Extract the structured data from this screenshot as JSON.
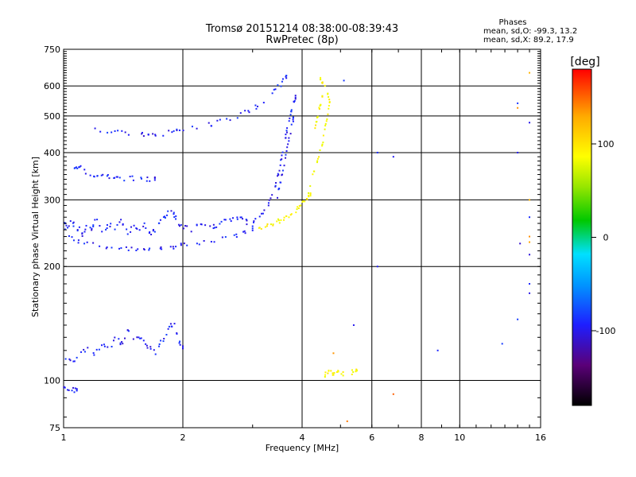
{
  "chart_data": {
    "type": "scatter",
    "title": "Tromsø 20151214 08:38:00-08:39:43",
    "subtitle": "RwPretec (8p)",
    "xlabel": "Frequency [MHz]",
    "ylabel": "Stationary phase Virtual Height [km]",
    "x_scale": "log",
    "y_scale": "log",
    "xlim": [
      1,
      16
    ],
    "ylim": [
      75,
      750
    ],
    "x_ticks": [
      1,
      2,
      4,
      6,
      8,
      10,
      16
    ],
    "y_ticks": [
      75,
      100,
      200,
      300,
      400,
      500,
      600,
      750
    ],
    "grid": true,
    "phases_box": {
      "title": "Phases",
      "line_o": "mean, sd,O: -99.3, 13.2",
      "line_x": "mean, sd,X: 89.2, 17.9"
    },
    "colorbar": {
      "label": "[deg]",
      "range": [
        -180,
        180
      ],
      "ticks": [
        100,
        0,
        -100
      ],
      "colors": [
        "#000000",
        "#5a0078",
        "#1e1eff",
        "#0096ff",
        "#00e0ff",
        "#00c800",
        "#96e600",
        "#ffff00",
        "#ffaa00",
        "#ff0000"
      ]
    },
    "traces": [
      {
        "name": "o_lower_F",
        "phase": -100,
        "points": [
          [
            1.0,
            250
          ],
          [
            1.05,
            238
          ],
          [
            1.1,
            232
          ],
          [
            1.2,
            228
          ],
          [
            1.3,
            225
          ],
          [
            1.4,
            224
          ],
          [
            1.5,
            223
          ],
          [
            1.6,
            223
          ],
          [
            1.7,
            223
          ],
          [
            1.8,
            224
          ],
          [
            1.9,
            225
          ],
          [
            2.0,
            227
          ],
          [
            2.2,
            230
          ],
          [
            2.4,
            234
          ],
          [
            2.6,
            238
          ],
          [
            2.8,
            244
          ],
          [
            3.0,
            252
          ]
        ]
      },
      {
        "name": "o_cloud_low",
        "phase": -100,
        "points": [
          [
            1.0,
            270
          ],
          [
            1.02,
            255
          ],
          [
            1.05,
            265
          ],
          [
            1.08,
            245
          ],
          [
            1.1,
            258
          ],
          [
            1.12,
            240
          ],
          [
            1.15,
            262
          ],
          [
            1.18,
            250
          ],
          [
            1.2,
            270
          ],
          [
            1.25,
            245
          ],
          [
            1.3,
            260
          ],
          [
            1.35,
            250
          ],
          [
            1.4,
            265
          ],
          [
            1.45,
            245
          ],
          [
            1.5,
            255
          ],
          [
            1.55,
            248
          ],
          [
            1.6,
            258
          ],
          [
            1.65,
            245
          ],
          [
            1.7,
            250
          ],
          [
            1.75,
            262
          ],
          [
            1.8,
            270
          ],
          [
            1.85,
            285
          ],
          [
            1.9,
            275
          ],
          [
            1.95,
            260
          ],
          [
            2.0,
            255
          ],
          [
            2.1,
            250
          ],
          [
            2.2,
            258
          ],
          [
            2.3,
            262
          ],
          [
            2.4,
            255
          ],
          [
            2.5,
            262
          ],
          [
            2.6,
            268
          ],
          [
            2.7,
            265
          ],
          [
            2.8,
            270
          ],
          [
            2.9,
            262
          ]
        ]
      },
      {
        "name": "o_cusp_upper",
        "phase": -100,
        "points": [
          [
            1.2,
            460
          ],
          [
            1.3,
            455
          ],
          [
            1.4,
            450
          ],
          [
            1.5,
            448
          ],
          [
            1.6,
            447
          ],
          [
            1.7,
            448
          ],
          [
            1.8,
            450
          ],
          [
            1.9,
            455
          ],
          [
            2.0,
            460
          ],
          [
            2.2,
            468
          ],
          [
            2.4,
            478
          ],
          [
            2.6,
            490
          ],
          [
            2.8,
            505
          ],
          [
            3.0,
            520
          ],
          [
            3.2,
            545
          ],
          [
            3.4,
            580
          ],
          [
            3.55,
            610
          ],
          [
            3.65,
            635
          ]
        ]
      },
      {
        "name": "o_layer_340",
        "phase": -100,
        "points": [
          [
            1.05,
            375
          ],
          [
            1.08,
            360
          ],
          [
            1.1,
            370
          ],
          [
            1.15,
            352
          ],
          [
            1.2,
            350
          ],
          [
            1.25,
            345
          ],
          [
            1.3,
            347
          ],
          [
            1.35,
            344
          ],
          [
            1.4,
            342
          ],
          [
            1.5,
            343
          ],
          [
            1.6,
            340
          ],
          [
            1.7,
            342
          ]
        ]
      },
      {
        "name": "o_rise",
        "phase": -100,
        "points": [
          [
            3.0,
            262
          ],
          [
            3.1,
            270
          ],
          [
            3.2,
            280
          ],
          [
            3.3,
            295
          ],
          [
            3.4,
            315
          ],
          [
            3.45,
            335
          ],
          [
            3.5,
            360
          ],
          [
            3.55,
            390
          ],
          [
            3.6,
            420
          ],
          [
            3.65,
            450
          ],
          [
            3.7,
            480
          ],
          [
            3.75,
            510
          ],
          [
            3.8,
            540
          ],
          [
            3.85,
            560
          ]
        ]
      },
      {
        "name": "o_cusp_mid",
        "phase": -100,
        "points": [
          [
            3.45,
            300
          ],
          [
            3.5,
            320
          ],
          [
            3.55,
            345
          ],
          [
            3.6,
            370
          ],
          [
            3.65,
            400
          ],
          [
            3.7,
            430
          ],
          [
            3.75,
            460
          ],
          [
            3.8,
            490
          ]
        ]
      },
      {
        "name": "x_base",
        "phase": 100,
        "points": [
          [
            3.1,
            252
          ],
          [
            3.2,
            254
          ],
          [
            3.3,
            256
          ],
          [
            3.4,
            260
          ],
          [
            3.5,
            264
          ],
          [
            3.6,
            268
          ],
          [
            3.7,
            272
          ],
          [
            3.8,
            278
          ],
          [
            3.9,
            285
          ],
          [
            4.0,
            292
          ],
          [
            4.1,
            300
          ],
          [
            4.2,
            310
          ]
        ]
      },
      {
        "name": "x_rise",
        "phase": 100,
        "points": [
          [
            4.1,
            300
          ],
          [
            4.2,
            330
          ],
          [
            4.3,
            360
          ],
          [
            4.4,
            390
          ],
          [
            4.5,
            420
          ],
          [
            4.55,
            450
          ],
          [
            4.6,
            480
          ],
          [
            4.65,
            510
          ],
          [
            4.7,
            540
          ],
          [
            4.65,
            570
          ],
          [
            4.55,
            600
          ],
          [
            4.45,
            625
          ]
        ]
      },
      {
        "name": "x_inner",
        "phase": 100,
        "points": [
          [
            4.3,
            450
          ],
          [
            4.35,
            480
          ],
          [
            4.4,
            510
          ],
          [
            4.45,
            540
          ],
          [
            4.5,
            560
          ]
        ]
      },
      {
        "name": "o_low_layer",
        "phase": -100,
        "points": [
          [
            1.0,
            115
          ],
          [
            1.05,
            112
          ],
          [
            1.1,
            118
          ],
          [
            1.15,
            122
          ],
          [
            1.2,
            118
          ],
          [
            1.25,
            125
          ],
          [
            1.3,
            120
          ],
          [
            1.35,
            130
          ],
          [
            1.4,
            125
          ],
          [
            1.45,
            135
          ],
          [
            1.5,
            128
          ],
          [
            1.55,
            132
          ],
          [
            1.6,
            126
          ],
          [
            1.65,
            122
          ],
          [
            1.7,
            118
          ],
          [
            1.75,
            125
          ],
          [
            1.8,
            130
          ],
          [
            1.85,
            138
          ],
          [
            1.9,
            142
          ],
          [
            1.95,
            128
          ],
          [
            2.0,
            122
          ]
        ]
      },
      {
        "name": "o_e_echo",
        "phase": -100,
        "points": [
          [
            1.0,
            95
          ],
          [
            1.02,
            94
          ],
          [
            1.05,
            95
          ],
          [
            1.08,
            94
          ]
        ]
      },
      {
        "name": "x_sporadic_105",
        "phase": 100,
        "points": [
          [
            4.5,
            103
          ],
          [
            4.6,
            104
          ],
          [
            4.7,
            106
          ],
          [
            4.8,
            103
          ],
          [
            4.9,
            105
          ],
          [
            5.0,
            104
          ],
          [
            5.3,
            106
          ],
          [
            5.4,
            104
          ],
          [
            5.5,
            106
          ]
        ]
      },
      {
        "name": "sparse_high_freq",
        "phase": -100,
        "points": [
          [
            6.2,
            400
          ],
          [
            6.2,
            200
          ],
          [
            5.1,
            620
          ],
          [
            12.8,
            125
          ],
          [
            14.0,
            540
          ],
          [
            14.0,
            400
          ],
          [
            14.2,
            230
          ],
          [
            15.0,
            480
          ],
          [
            15.0,
            270
          ],
          [
            15.0,
            215
          ],
          [
            15.0,
            180
          ],
          [
            15.0,
            170
          ],
          [
            14.0,
            145
          ],
          [
            8.8,
            120
          ],
          [
            5.4,
            140
          ],
          [
            6.8,
            390
          ]
        ]
      },
      {
        "name": "sparse_warm",
        "phase": 150,
        "points": [
          [
            15.0,
            650
          ],
          [
            14.0,
            525
          ],
          [
            15.0,
            300
          ],
          [
            15.0,
            240
          ],
          [
            15.0,
            232
          ],
          [
            6.8,
            92
          ],
          [
            5.2,
            78
          ],
          [
            4.8,
            118
          ]
        ]
      }
    ]
  }
}
